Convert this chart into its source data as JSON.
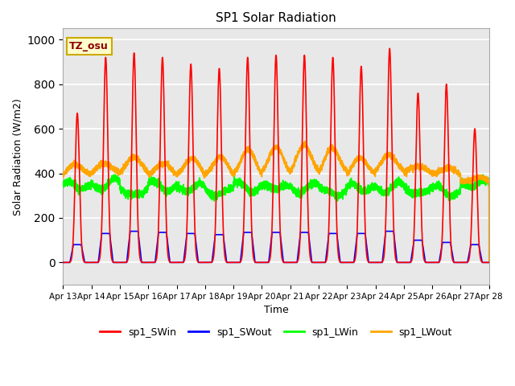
{
  "title": "SP1 Solar Radiation",
  "xlabel": "Time",
  "ylabel": "Solar Radiation (W/m2)",
  "ylim": [
    -100,
    1050
  ],
  "xlim": [
    0,
    15
  ],
  "background_color": "#e8e8e8",
  "grid_color": "white",
  "colors": {
    "sp1_SWin": "red",
    "sp1_SWout": "blue",
    "sp1_LWin": "lime",
    "sp1_LWout": "orange"
  },
  "tz_label": "TZ_osu",
  "x_tick_labels": [
    "Apr 13",
    "Apr 14",
    "Apr 15",
    "Apr 16",
    "Apr 17",
    "Apr 18",
    "Apr 19",
    "Apr 20",
    "Apr 21",
    "Apr 22",
    "Apr 23",
    "Apr 24",
    "Apr 25",
    "Apr 26",
    "Apr 27",
    "Apr 28"
  ],
  "num_days": 15,
  "lw": 1.2,
  "sw_in_peaks": [
    670,
    920,
    940,
    920,
    890,
    870,
    920,
    930,
    930,
    920,
    880,
    960,
    760,
    800,
    600
  ],
  "sw_out_peaks": [
    80,
    130,
    140,
    135,
    130,
    125,
    135,
    135,
    135,
    130,
    130,
    140,
    100,
    90,
    80
  ],
  "lw_out_day_peaks": [
    440,
    450,
    480,
    450,
    470,
    470,
    500,
    510,
    520,
    510,
    470,
    490,
    440,
    430,
    380
  ],
  "lw_out_night": [
    380,
    380,
    370,
    370,
    370,
    380,
    380,
    390,
    390,
    385,
    375,
    380,
    380,
    375,
    360
  ]
}
